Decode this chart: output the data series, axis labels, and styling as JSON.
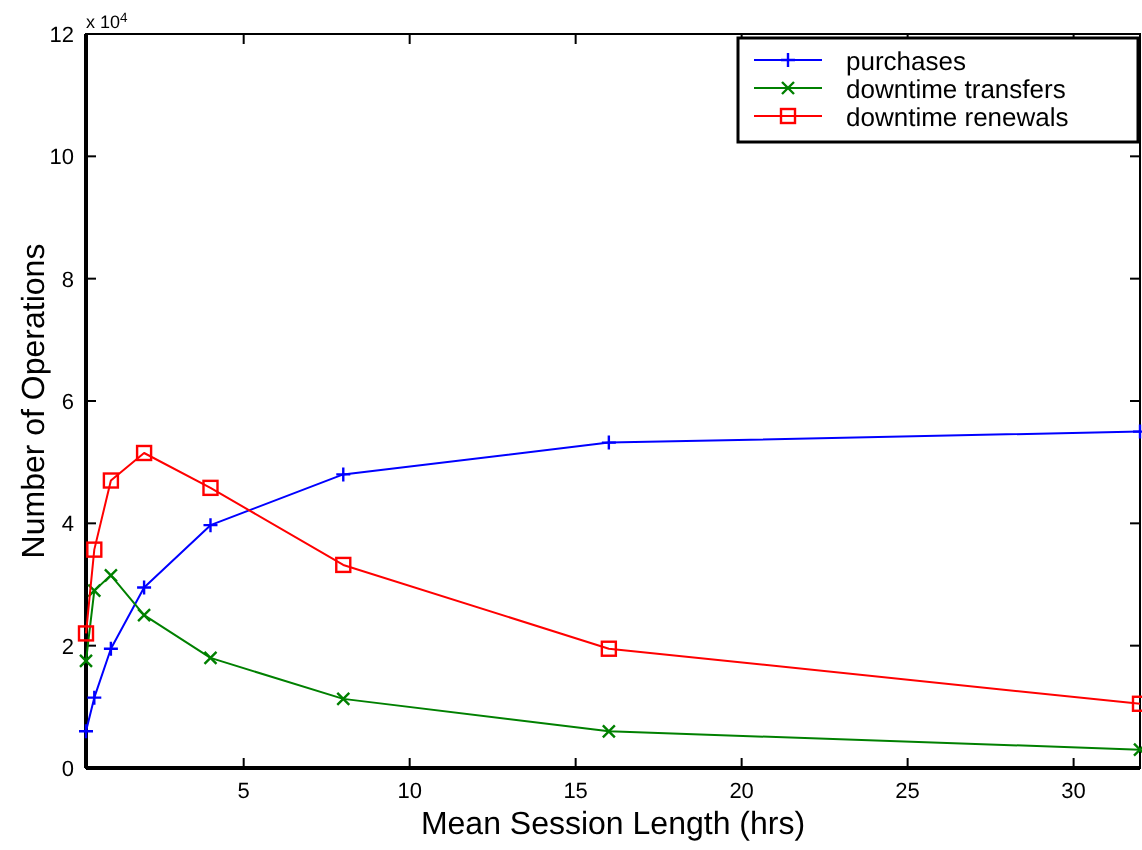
{
  "chart_data": {
    "type": "line",
    "xlabel": "Mean Session Length (hrs)",
    "ylabel": "Number of Operations",
    "annotations": [
      "x 10$^{4}$"
    ],
    "x": [
      0.25,
      0.5,
      1,
      2,
      4,
      8,
      16,
      32
    ],
    "xlim": [
      0.25,
      32
    ],
    "xticks": [
      5,
      10,
      15,
      20,
      25,
      30
    ],
    "ylim": [
      0,
      12
    ],
    "yticks": [
      0,
      2,
      4,
      6,
      8,
      10,
      12
    ],
    "grid": false,
    "legend": "top right",
    "series": [
      {
        "name": "purchases",
        "color": "#0000ff",
        "marker": "plus",
        "values": [
          0.6,
          1.15,
          1.95,
          2.95,
          3.97,
          4.8,
          5.32,
          5.5
        ]
      },
      {
        "name": "downtime transfers",
        "color": "#008000",
        "marker": "cross",
        "values": [
          1.75,
          2.9,
          3.15,
          2.5,
          1.8,
          1.13,
          0.6,
          0.3
        ]
      },
      {
        "name": "downtime renewals",
        "color": "#ff0000",
        "marker": "square",
        "values": [
          2.2,
          3.57,
          4.7,
          5.15,
          4.58,
          3.32,
          1.95,
          1.05
        ]
      }
    ]
  }
}
